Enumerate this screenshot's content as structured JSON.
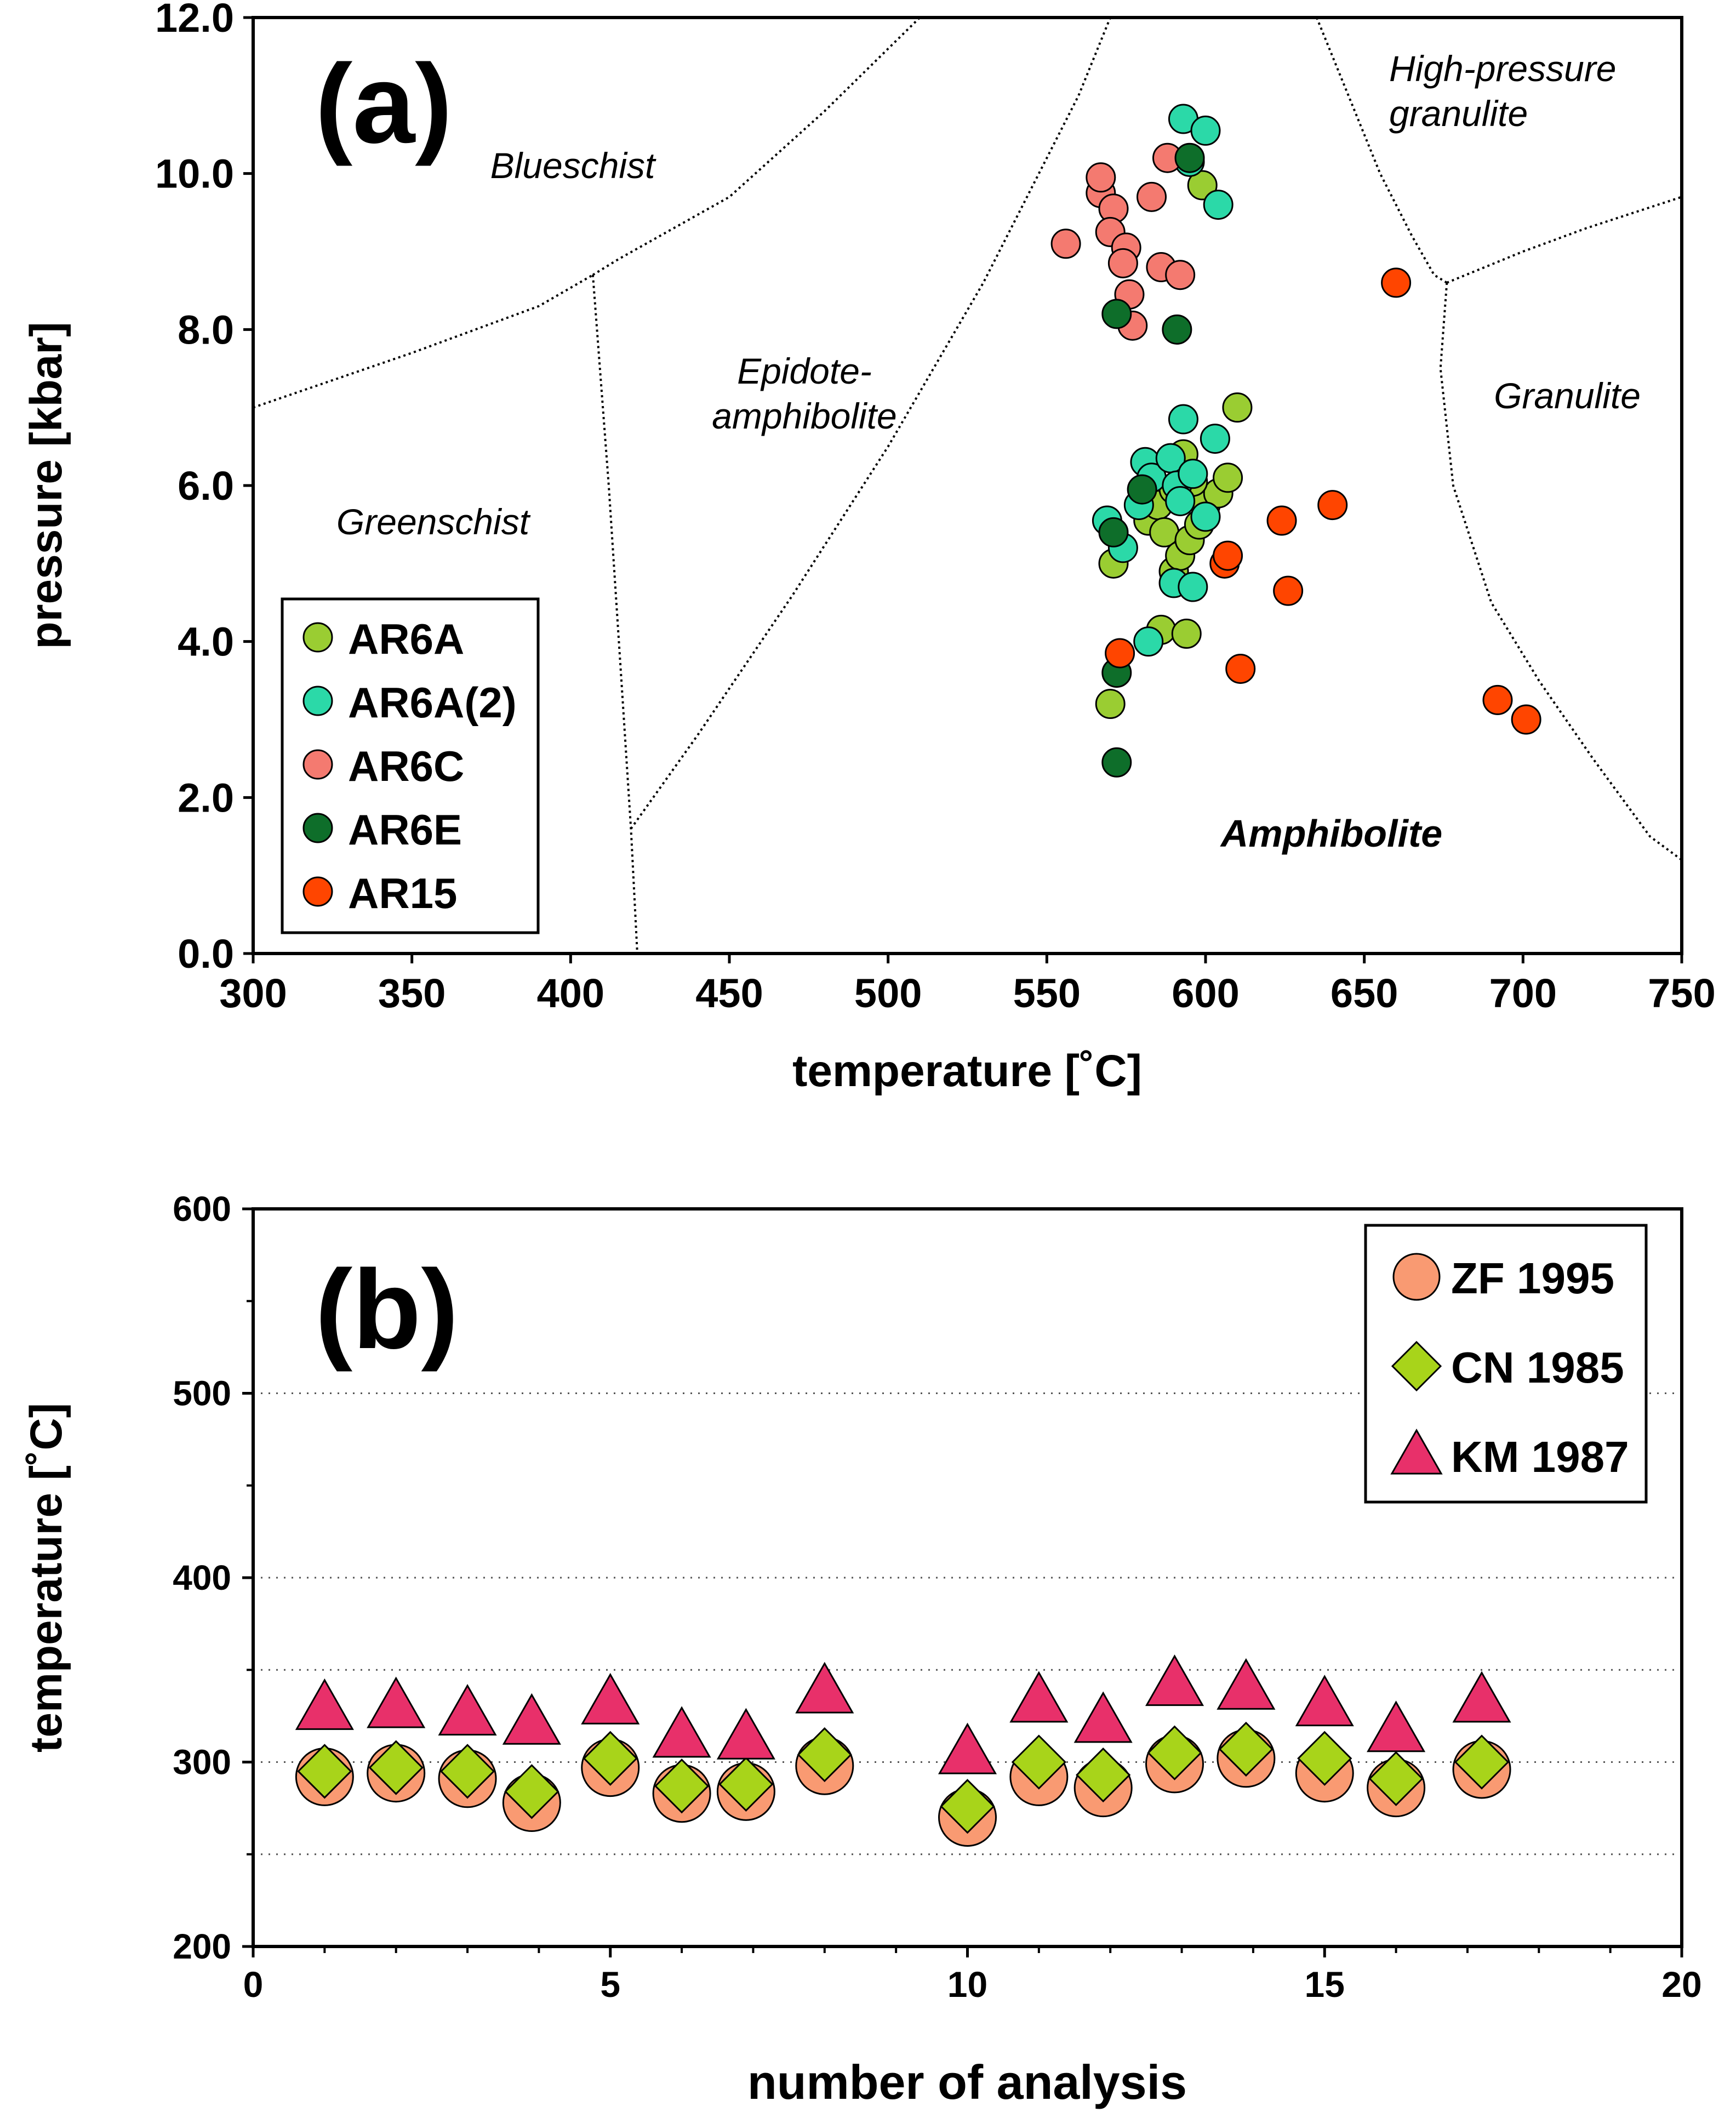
{
  "chart_data": [
    {
      "type": "scatter",
      "panel_label": "(a)",
      "xlabel": "temperature  [˚C]",
      "ylabel": "pressure [kbar]",
      "xlim": [
        300,
        750
      ],
      "ylim": [
        0,
        12
      ],
      "xticks": [
        "300",
        "350",
        "400",
        "450",
        "500",
        "550",
        "600",
        "650",
        "700",
        "750"
      ],
      "yticks": [
        "0.0",
        "2.0",
        "4.0",
        "6.0",
        "8.0",
        "10.0",
        "12.0"
      ],
      "grid": false,
      "legend_position": "bottom-left",
      "facies_labels": [
        {
          "id": "blueschist",
          "lines": [
            "Blueschist"
          ],
          "bold": false
        },
        {
          "id": "greenschist",
          "lines": [
            "Greenschist"
          ],
          "bold": false
        },
        {
          "id": "epidote-amphibolite",
          "lines": [
            "Epidote-",
            "amphibolite"
          ],
          "bold": false
        },
        {
          "id": "high-pressure-granulite",
          "lines": [
            "High-pressure",
            "granulite"
          ],
          "bold": false
        },
        {
          "id": "granulite",
          "lines": [
            "Granulite"
          ],
          "bold": false
        },
        {
          "id": "amphibolite",
          "lines": [
            "Amphibolite"
          ],
          "bold": true
        }
      ],
      "facies_boundaries": [
        [
          [
            300,
            7.0
          ],
          [
            350,
            7.7
          ],
          [
            390,
            8.3
          ],
          [
            407,
            8.7
          ]
        ],
        [
          [
            407,
            8.7
          ],
          [
            415,
            8.9
          ],
          [
            450,
            9.7
          ],
          [
            480,
            10.8
          ],
          [
            510,
            12.0
          ]
        ],
        [
          [
            407,
            8.7
          ],
          [
            412,
            6.0
          ],
          [
            416,
            3.5
          ],
          [
            419,
            1.6
          ],
          [
            421,
            0
          ]
        ],
        [
          [
            419,
            1.6
          ],
          [
            440,
            2.8
          ],
          [
            470,
            4.6
          ],
          [
            500,
            6.5
          ],
          [
            530,
            8.6
          ],
          [
            560,
            11.0
          ],
          [
            570,
            12.0
          ]
        ],
        [
          [
            635,
            12.0
          ],
          [
            645,
            11.0
          ],
          [
            655,
            10.0
          ],
          [
            665,
            9.2
          ],
          [
            672,
            8.7
          ],
          [
            676,
            8.6
          ]
        ],
        [
          [
            676,
            8.6
          ],
          [
            700,
            9.0
          ],
          [
            720,
            9.3
          ],
          [
            750,
            9.7
          ]
        ],
        [
          [
            676,
            8.6
          ],
          [
            674,
            7.5
          ],
          [
            678,
            6.0
          ],
          [
            690,
            4.5
          ],
          [
            705,
            3.5
          ],
          [
            722,
            2.5
          ],
          [
            740,
            1.5
          ],
          [
            750,
            1.2
          ]
        ]
      ],
      "series": [
        {
          "name": "AR6A",
          "color": "#9ACD32",
          "marker": "circle",
          "points": [
            [
              570,
              3.2
            ],
            [
              571,
              5.0
            ],
            [
              586,
              4.15
            ],
            [
              594,
              4.1
            ],
            [
              582,
              5.55
            ],
            [
              585,
              5.75
            ],
            [
              587,
              5.4
            ],
            [
              590,
              4.9
            ],
            [
              592,
              5.1
            ],
            [
              595,
              5.3
            ],
            [
              598,
              5.5
            ],
            [
              600,
              5.75
            ],
            [
              604,
              5.9
            ],
            [
              607,
              6.1
            ],
            [
              610,
              7.0
            ],
            [
              593,
              6.4
            ],
            [
              590,
              5.95
            ],
            [
              596,
              6.05
            ],
            [
              599,
              9.85
            ]
          ]
        },
        {
          "name": "AR6A(2)",
          "color": "#2BD9A8",
          "marker": "circle",
          "points": [
            [
              569,
              5.55
            ],
            [
              574,
              5.2
            ],
            [
              579,
              5.75
            ],
            [
              581,
              6.3
            ],
            [
              583,
              6.1
            ],
            [
              589,
              6.35
            ],
            [
              591,
              6.0
            ],
            [
              593,
              6.85
            ],
            [
              596,
              6.15
            ],
            [
              592,
              5.8
            ],
            [
              600,
              5.6
            ],
            [
              603,
              6.6
            ],
            [
              590,
              4.75
            ],
            [
              596,
              4.7
            ],
            [
              582,
              4.0
            ],
            [
              593,
              10.7
            ],
            [
              600,
              10.55
            ],
            [
              604,
              9.6
            ],
            [
              595,
              10.15
            ]
          ]
        },
        {
          "name": "AR6C",
          "color": "#F47A70",
          "marker": "circle",
          "points": [
            [
              556,
              9.1
            ],
            [
              567,
              9.75
            ],
            [
              567,
              9.95
            ],
            [
              571,
              9.55
            ],
            [
              570,
              9.25
            ],
            [
              575,
              9.05
            ],
            [
              574,
              8.85
            ],
            [
              576,
              8.45
            ],
            [
              577,
              8.05
            ],
            [
              586,
              8.8
            ],
            [
              592,
              8.7
            ],
            [
              583,
              9.7
            ],
            [
              588,
              10.2
            ]
          ]
        },
        {
          "name": "AR6E",
          "color": "#0E6E2A",
          "marker": "circle",
          "points": [
            [
              572,
              2.45
            ],
            [
              572,
              3.6
            ],
            [
              571,
              5.4
            ],
            [
              580,
              5.95
            ],
            [
              572,
              8.2
            ],
            [
              591,
              8.0
            ],
            [
              595,
              10.2
            ]
          ]
        },
        {
          "name": "AR15",
          "color": "#FF4500",
          "marker": "circle",
          "points": [
            [
              573,
              3.85
            ],
            [
              606,
              5.0
            ],
            [
              607,
              5.1
            ],
            [
              611,
              3.65
            ],
            [
              624,
              5.55
            ],
            [
              626,
              4.65
            ],
            [
              640,
              5.75
            ],
            [
              660,
              8.6
            ],
            [
              692,
              3.25
            ],
            [
              701,
              3.0
            ]
          ]
        }
      ]
    },
    {
      "type": "scatter",
      "panel_label": "(b)",
      "xlabel": "number of analysis",
      "ylabel": "temperature  [˚C]",
      "xlim": [
        0,
        20
      ],
      "ylim": [
        200,
        600
      ],
      "xticks": [
        "0",
        "5",
        "10",
        "15",
        "20"
      ],
      "yticks": [
        "200",
        "300",
        "400",
        "500",
        "600"
      ],
      "grid": "dotted horizontal lines at 250, 300, 350, 400, 500",
      "legend_position": "top-right",
      "series": [
        {
          "name": "ZF 1995",
          "color": "#F99A72",
          "marker": "circle",
          "points": [
            [
              1,
              292
            ],
            [
              2,
              294
            ],
            [
              3,
              291
            ],
            [
              3.9,
              278
            ],
            [
              5,
              297
            ],
            [
              6,
              283
            ],
            [
              6.9,
              284
            ],
            [
              8,
              298
            ],
            [
              10,
              270
            ],
            [
              11,
              292
            ],
            [
              11.9,
              286
            ],
            [
              12.9,
              299
            ],
            [
              13.9,
              302
            ],
            [
              15,
              294
            ],
            [
              16,
              286
            ],
            [
              17.2,
              296
            ]
          ]
        },
        {
          "name": "CN 1985",
          "color": "#A8D41A",
          "marker": "diamond",
          "points": [
            [
              1,
              295
            ],
            [
              2,
              297
            ],
            [
              3,
              295
            ],
            [
              3.9,
              284
            ],
            [
              5,
              302
            ],
            [
              6,
              287
            ],
            [
              6.9,
              288
            ],
            [
              8,
              304
            ],
            [
              10,
              276
            ],
            [
              11,
              300
            ],
            [
              11.9,
              293
            ],
            [
              12.9,
              305
            ],
            [
              13.9,
              307
            ],
            [
              15,
              302
            ],
            [
              16,
              291
            ],
            [
              17.2,
              300
            ]
          ]
        },
        {
          "name": "KM 1987",
          "color": "#E8306A",
          "marker": "triangle",
          "points": [
            [
              1,
              329
            ],
            [
              2,
              330
            ],
            [
              3,
              326
            ],
            [
              3.9,
              321
            ],
            [
              5,
              332
            ],
            [
              6,
              314
            ],
            [
              6.9,
              313
            ],
            [
              8,
              338
            ],
            [
              10,
              305
            ],
            [
              11,
              333
            ],
            [
              11.9,
              322
            ],
            [
              12.9,
              342
            ],
            [
              13.9,
              340
            ],
            [
              15,
              331
            ],
            [
              16,
              317
            ],
            [
              17.2,
              333
            ]
          ]
        }
      ]
    }
  ]
}
